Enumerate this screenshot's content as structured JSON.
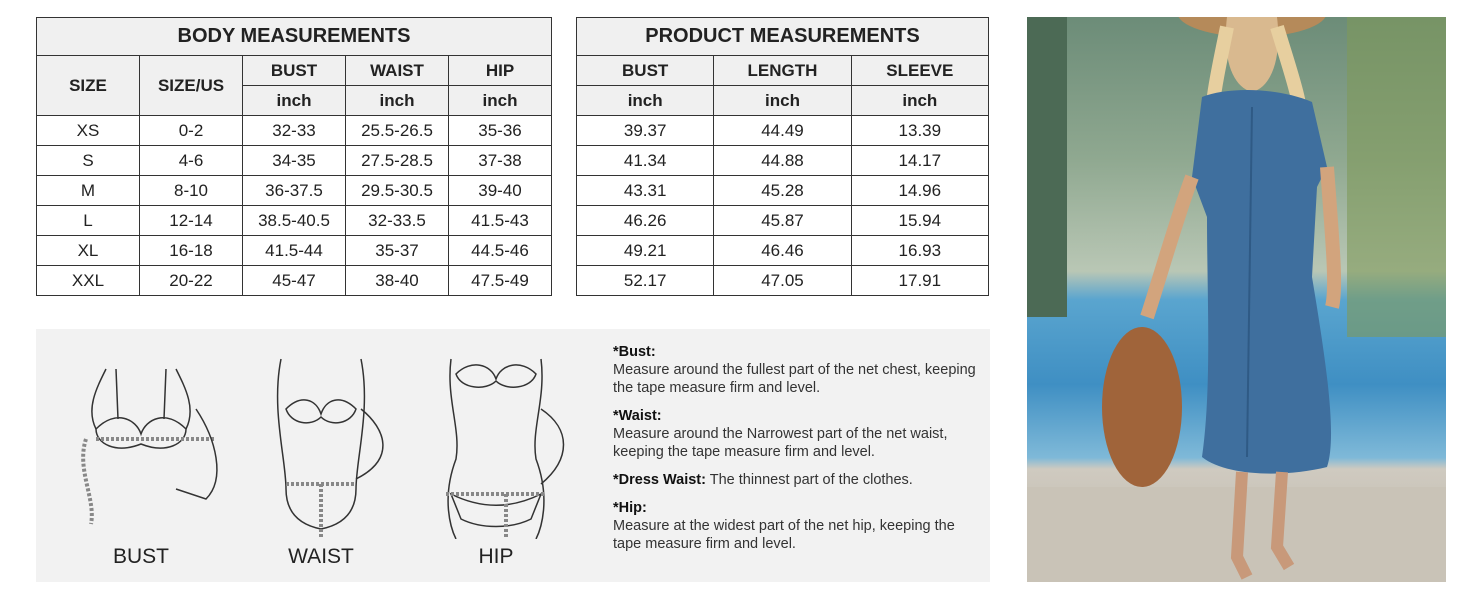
{
  "body_measurements": {
    "title": "BODY MEASUREMENTS",
    "headers": [
      "SIZE",
      "SIZE/US",
      "BUST",
      "WAIST",
      "HIP"
    ],
    "unit": "inch",
    "rows": [
      [
        "XS",
        "0-2",
        "32-33",
        "25.5-26.5",
        "35-36"
      ],
      [
        "S",
        "4-6",
        "34-35",
        "27.5-28.5",
        "37-38"
      ],
      [
        "M",
        "8-10",
        "36-37.5",
        "29.5-30.5",
        "39-40"
      ],
      [
        "L",
        "12-14",
        "38.5-40.5",
        "32-33.5",
        "41.5-43"
      ],
      [
        "XL",
        "16-18",
        "41.5-44",
        "35-37",
        "44.5-46"
      ],
      [
        "XXL",
        "20-22",
        "45-47",
        "38-40",
        "47.5-49"
      ]
    ]
  },
  "product_measurements": {
    "title": "PRODUCT MEASUREMENTS",
    "headers": [
      "BUST",
      "LENGTH",
      "SLEEVE"
    ],
    "unit": "inch",
    "rows": [
      [
        "39.37",
        "44.49",
        "13.39"
      ],
      [
        "41.34",
        "44.88",
        "14.17"
      ],
      [
        "43.31",
        "45.28",
        "14.96"
      ],
      [
        "46.26",
        "45.87",
        "15.94"
      ],
      [
        "49.21",
        "46.46",
        "16.93"
      ],
      [
        "52.17",
        "47.05",
        "17.91"
      ]
    ]
  },
  "guide": {
    "figures": [
      "BUST",
      "WAIST",
      "HIP"
    ],
    "notes": [
      {
        "label": "*Bust:",
        "text": "Measure around the fullest part of the net chest, keeping the tape  measure firm and level.",
        "inline": false
      },
      {
        "label": "*Waist:",
        "text": "Measure around the Narrowest part of the net waist, keeping the tape  measure firm and level.",
        "inline": false
      },
      {
        "label": "*Dress Waist:",
        "text": " The thinnest part of the clothes.",
        "inline": true
      },
      {
        "label": "*Hip:",
        "text": "Measure at the widest part of the net hip, keeping the tape  measure firm and level.",
        "inline": false
      }
    ]
  },
  "photo": {
    "subject": "model-in-blue-denim-shirt-dress",
    "dress_color": "#3f6f9e"
  }
}
